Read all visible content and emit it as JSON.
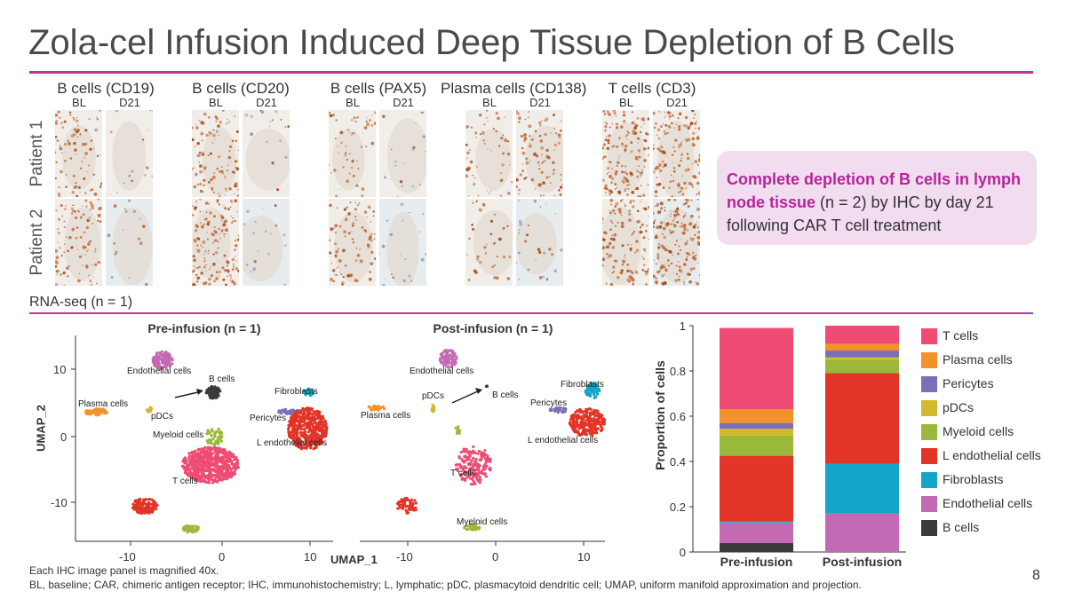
{
  "title": "Zola-cel Infusion Induced Deep Tissue Depletion of B Cells",
  "ihc": {
    "markers": [
      "B cells (CD19)",
      "B cells (CD20)",
      "B cells (PAX5)",
      "Plasma cells (CD138)",
      "T cells (CD3)"
    ],
    "bl_label": "BL",
    "d21_label": "D21",
    "patients": [
      "Patient 1",
      "Patient 2"
    ]
  },
  "callout": {
    "highlight": "Complete depletion of B cells in lymph node tissue",
    "rest": " (n = 2) by IHC by day 21 following CAR T cell treatment"
  },
  "rnaseq_label": "RNA-seq (n = 1)",
  "umap": {
    "pre_title": "Pre-infusion (n = 1)",
    "post_title": "Post-infusion (n = 1)",
    "xlabel": "UMAP_1",
    "ylabel": "UMAP_2",
    "x_ticks": [
      "-10",
      "0",
      "10"
    ],
    "y_ticks": [
      "10",
      "0",
      "-10"
    ],
    "pre_labels": {
      "endothelial": "Endothelial cells",
      "bcells": "B cells",
      "fibroblasts": "Fibroblasts",
      "plasma": "Plasma cells",
      "pdcs": "pDCs",
      "pericytes": "Pericytes",
      "myeloid": "Myeloid cells",
      "lendo": "L endothelial cells",
      "tcells": "T cells"
    },
    "post_labels": {
      "endothelial": "Endothelial cells",
      "pdcs": "pDCs",
      "bcells": "B cells",
      "fibroblasts": "Fibroblasts",
      "pericytes": "Pericytes",
      "plasma": "Plasma cells",
      "lendo": "L endothelial cells",
      "tcells": "T cells",
      "myeloid": "Myeloid cells"
    }
  },
  "chart_data": {
    "type": "bar",
    "stacked": true,
    "categories": [
      "Pre-infusion",
      "Post-infusion"
    ],
    "ylabel": "Proportion of cells",
    "ylim": [
      0,
      1
    ],
    "y_ticks": [
      "0",
      "0.2",
      "0.4",
      "0.6",
      "0.8",
      "1"
    ],
    "series": [
      {
        "name": "B cells",
        "color": "#3a3a3a",
        "values": [
          0.04,
          0.0
        ]
      },
      {
        "name": "Endothelial cells",
        "color": "#c46ab4",
        "values": [
          0.09,
          0.17
        ]
      },
      {
        "name": "Fibroblasts",
        "color": "#12a5c8",
        "values": [
          0.005,
          0.22
        ]
      },
      {
        "name": "L endothelial cells",
        "color": "#e23427",
        "values": [
          0.29,
          0.4
        ]
      },
      {
        "name": "Myeloid cells",
        "color": "#9ab83a",
        "values": [
          0.09,
          0.06
        ]
      },
      {
        "name": "pDCs",
        "color": "#d2b82b",
        "values": [
          0.03,
          0.01
        ]
      },
      {
        "name": "Pericytes",
        "color": "#7b6fb7",
        "values": [
          0.025,
          0.03
        ]
      },
      {
        "name": "Plasma cells",
        "color": "#f2922a",
        "values": [
          0.06,
          0.03
        ]
      },
      {
        "name": "T cells",
        "color": "#ee4c74",
        "values": [
          0.36,
          0.08
        ]
      }
    ],
    "legend": [
      "T cells",
      "Plasma cells",
      "Pericytes",
      "pDCs",
      "Myeloid cells",
      "L endothelial cells",
      "Fibroblasts",
      "Endothelial cells",
      "B cells"
    ],
    "legend_colors": [
      "#ee4c74",
      "#f2922a",
      "#7b6fb7",
      "#d2b82b",
      "#9ab83a",
      "#e23427",
      "#12a5c8",
      "#c46ab4",
      "#3a3a3a"
    ]
  },
  "footnotes": [
    "Each IHC image panel is magnified 40x.",
    "BL, baseline; CAR, chimeric antigen receptor; IHC, immunohistochemistry; L, lymphatic; pDC, plasmacytoid dendritic cell; UMAP, uniform manifold approximation and projection."
  ],
  "page_number": "8"
}
